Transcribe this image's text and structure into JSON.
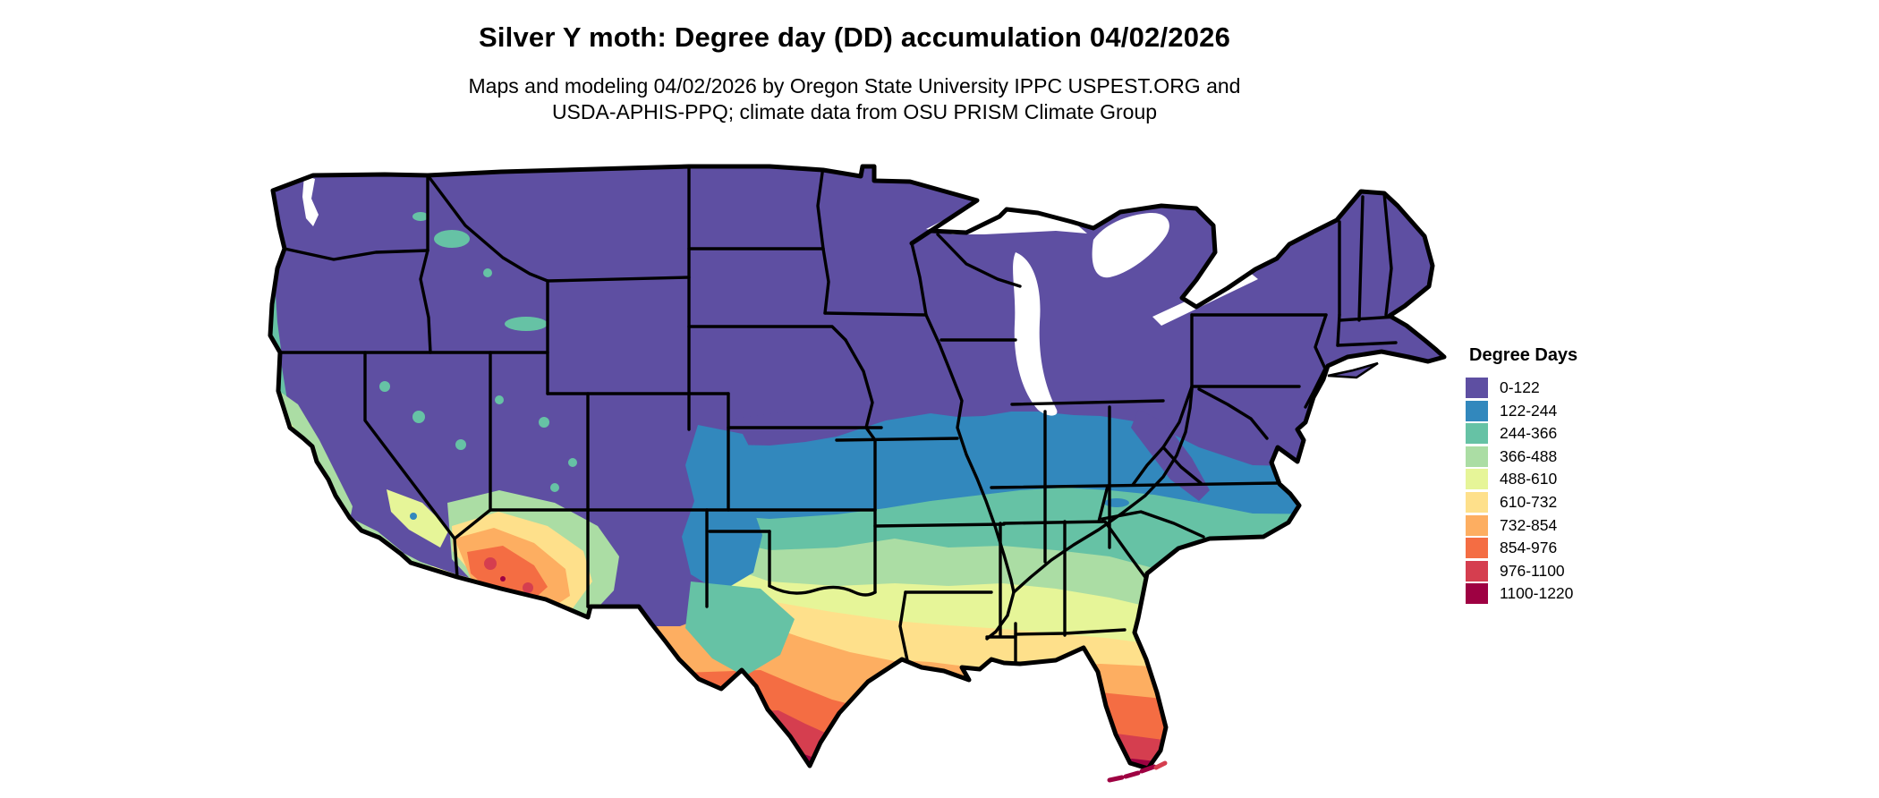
{
  "header": {
    "title": "Silver Y moth: Degree day (DD) accumulation 04/02/2026",
    "subtitle_line1": "Maps and modeling 04/02/2026 by Oregon State University IPPC USPEST.ORG and",
    "subtitle_line2": "USDA-APHIS-PPQ; climate data from OSU PRISM Climate Group"
  },
  "legend": {
    "title": "Degree Days",
    "entries": [
      {
        "label": "0-122",
        "color": "#5e4fa2"
      },
      {
        "label": "122-244",
        "color": "#3288bd"
      },
      {
        "label": "244-366",
        "color": "#66c2a5"
      },
      {
        "label": "366-488",
        "color": "#abdda4"
      },
      {
        "label": "488-610",
        "color": "#e6f598"
      },
      {
        "label": "610-732",
        "color": "#fee08b"
      },
      {
        "label": "732-854",
        "color": "#fdae61"
      },
      {
        "label": "854-976",
        "color": "#f46d43"
      },
      {
        "label": "976-1100",
        "color": "#d53e4f"
      },
      {
        "label": "1100-1220",
        "color": "#9e0142"
      }
    ]
  },
  "map": {
    "region": "Contiguous United States",
    "unit": "accumulated degree days",
    "border_color": "#000000",
    "water_color": "#ffffff"
  }
}
